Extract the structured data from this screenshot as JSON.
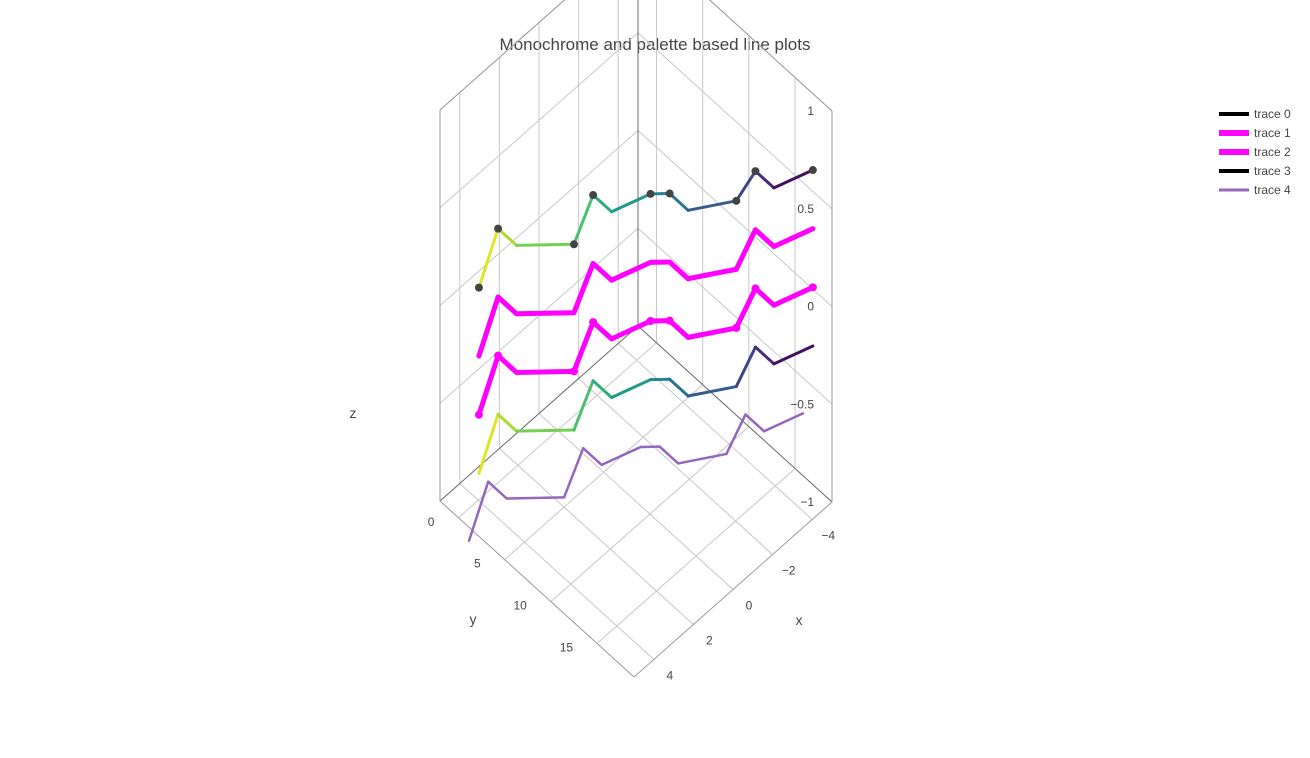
{
  "chart_data": {
    "type": "scatter3d-line",
    "title": "Monochrome and palette based line plots",
    "axes": {
      "x": {
        "label": "x",
        "range": [
          -5,
          5
        ],
        "ticks": [
          -4,
          -2,
          0,
          2,
          4
        ],
        "tick_labels": [
          "−4",
          "−2",
          "0",
          "2",
          "4"
        ]
      },
      "y": {
        "label": "y",
        "range": [
          -2,
          19
        ],
        "ticks": [
          0,
          5,
          10,
          15
        ],
        "tick_labels": [
          "0",
          "5",
          "10",
          "15"
        ]
      },
      "z": {
        "label": "z",
        "range": [
          -1,
          1
        ],
        "ticks": [
          -1,
          -0.5,
          0,
          0.5,
          1
        ],
        "tick_labels": [
          "−1",
          "−0.5",
          "0",
          "0.5",
          "1"
        ]
      }
    },
    "grid": true,
    "legend": {
      "position": "top-right"
    },
    "series": [
      {
        "name": "trace 0",
        "legend_color": "#000000",
        "colorscale": "viridis",
        "markers": true,
        "marker_color": "#444444",
        "x": [
          3.5,
          3.0,
          3.0,
          1.5,
          1.0,
          1.0,
          -0.5,
          -1.0,
          -1.0,
          -2.5,
          -3.0,
          -3.0,
          -4.5
        ],
        "y": [
          -1,
          0,
          2,
          5,
          6,
          8,
          9,
          10,
          12,
          14,
          15,
          17,
          18
        ],
        "z": [
          0.0,
          0.3,
          0.3,
          0.3,
          0.55,
          0.55,
          0.55,
          0.55,
          0.55,
          0.55,
          0.7,
          0.7,
          0.7
        ],
        "marker_indices": [
          0,
          1,
          3,
          4,
          6,
          7,
          9,
          10,
          12
        ]
      },
      {
        "name": "trace 1",
        "legend_color": "#ff00ff",
        "color": "#ff00ff",
        "markers": false,
        "x": [
          3.5,
          3.0,
          3.0,
          1.5,
          1.0,
          1.0,
          -0.5,
          -1.0,
          -1.0,
          -2.5,
          -3.0,
          -3.0,
          -4.5
        ],
        "y": [
          -1,
          0,
          2,
          5,
          6,
          8,
          9,
          10,
          12,
          14,
          15,
          17,
          18
        ],
        "z": [
          -0.35,
          -0.05,
          -0.05,
          -0.05,
          0.2,
          0.2,
          0.2,
          0.2,
          0.2,
          0.2,
          0.4,
          0.4,
          0.4
        ]
      },
      {
        "name": "trace 2",
        "legend_color": "#ff00ff",
        "color": "#ff00ff",
        "markers": true,
        "marker_color": "#ff00ff",
        "x": [
          3.5,
          3.0,
          3.0,
          1.5,
          1.0,
          1.0,
          -0.5,
          -1.0,
          -1.0,
          -2.5,
          -3.0,
          -3.0,
          -4.5
        ],
        "y": [
          -1,
          0,
          2,
          5,
          6,
          8,
          9,
          10,
          12,
          14,
          15,
          17,
          18
        ],
        "z": [
          -0.65,
          -0.35,
          -0.35,
          -0.35,
          -0.1,
          -0.1,
          -0.1,
          -0.1,
          -0.1,
          -0.1,
          0.1,
          0.1,
          0.1
        ],
        "marker_indices": [
          0,
          1,
          3,
          4,
          6,
          7,
          9,
          10,
          12
        ]
      },
      {
        "name": "trace 3",
        "legend_color": "#000000",
        "colorscale": "viridis",
        "markers": false,
        "x": [
          3.5,
          3.0,
          3.0,
          1.5,
          1.0,
          1.0,
          -0.5,
          -1.0,
          -1.0,
          -2.5,
          -3.0,
          -3.0,
          -4.5
        ],
        "y": [
          -1,
          0,
          2,
          5,
          6,
          8,
          9,
          10,
          12,
          14,
          15,
          17,
          18
        ],
        "z": [
          -0.95,
          -0.65,
          -0.65,
          -0.65,
          -0.4,
          -0.4,
          -0.4,
          -0.4,
          -0.4,
          -0.4,
          -0.2,
          -0.2,
          -0.2
        ]
      },
      {
        "name": "trace 4",
        "legend_color": "#9467bd",
        "color": "#9467bd",
        "markers": false,
        "x": [
          4.0,
          3.5,
          3.5,
          2.0,
          1.5,
          1.5,
          0.0,
          -0.5,
          -0.5,
          -2.0,
          -2.5,
          -2.5,
          -4.0
        ],
        "y": [
          -1,
          0,
          2,
          5,
          6,
          8,
          9,
          10,
          12,
          14,
          15,
          17,
          18
        ],
        "z": [
          -1.25,
          -0.95,
          -0.95,
          -0.95,
          -0.7,
          -0.7,
          -0.7,
          -0.7,
          -0.7,
          -0.7,
          -0.5,
          -0.5,
          -0.5
        ]
      }
    ]
  }
}
